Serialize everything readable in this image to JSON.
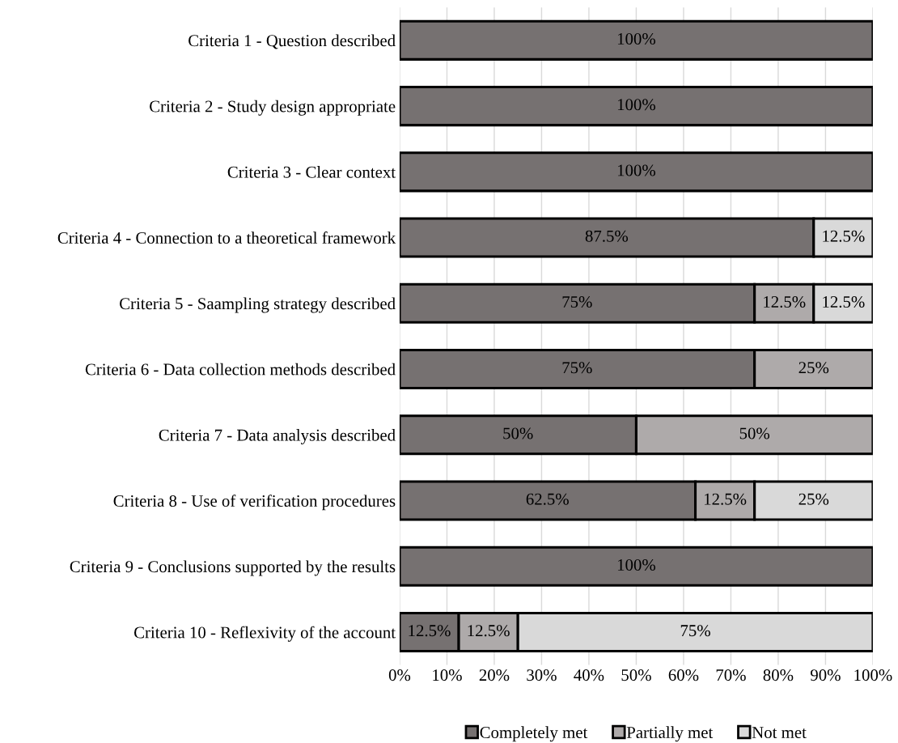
{
  "chart_data": {
    "type": "bar",
    "orientation": "horizontal",
    "stacked": true,
    "categories": [
      "Criteria 1 - Question described",
      "Criteria 2 - Study design appropriate",
      "Criteria 3 - Clear context",
      "Criteria 4 - Connection to a theoretical framework",
      "Criteria 5 - Saampling strategy described",
      "Criteria 6 - Data collection methods described",
      "Criteria 7 - Data analysis described",
      "Criteria 8 - Use of verification procedures",
      "Criteria 9 - Conclusions supported by the results",
      "Criteria 10 - Reflexivity of the account"
    ],
    "series": [
      {
        "name": "Completely met",
        "color": "#767171",
        "values": [
          100,
          100,
          100,
          87.5,
          75,
          75,
          50,
          62.5,
          100,
          12.5
        ],
        "value_labels": [
          "100%",
          "100%",
          "100%",
          "87.5%",
          "75%",
          "75%",
          "50%",
          "62.5%",
          "100%",
          "12.5%"
        ]
      },
      {
        "name": "Partially met",
        "color": "#aeaaaa",
        "values": [
          0,
          0,
          0,
          0,
          12.5,
          25,
          50,
          12.5,
          0,
          12.5
        ],
        "value_labels": [
          null,
          null,
          null,
          null,
          "12.5%",
          "25%",
          "50%",
          "12.5%",
          null,
          "12.5%"
        ]
      },
      {
        "name": "Not met",
        "color": "#d9d9d9",
        "values": [
          0,
          0,
          0,
          12.5,
          12.5,
          0,
          0,
          25,
          0,
          75
        ],
        "value_labels": [
          null,
          null,
          null,
          "12.5%",
          "12.5%",
          null,
          null,
          "25%",
          null,
          "75%"
        ]
      }
    ],
    "xlim": [
      0,
      100
    ],
    "xticks": [
      {
        "value": 0,
        "label": "0%"
      },
      {
        "value": 10,
        "label": "10%"
      },
      {
        "value": 20,
        "label": "20%"
      },
      {
        "value": 30,
        "label": "30%"
      },
      {
        "value": 40,
        "label": "40%"
      },
      {
        "value": 50,
        "label": "50%"
      },
      {
        "value": 60,
        "label": "60%"
      },
      {
        "value": 70,
        "label": "70%"
      },
      {
        "value": 80,
        "label": "80%"
      },
      {
        "value": 90,
        "label": "90%"
      },
      {
        "value": 100,
        "label": "100%"
      }
    ],
    "grid": "x",
    "legend": "bottom"
  }
}
